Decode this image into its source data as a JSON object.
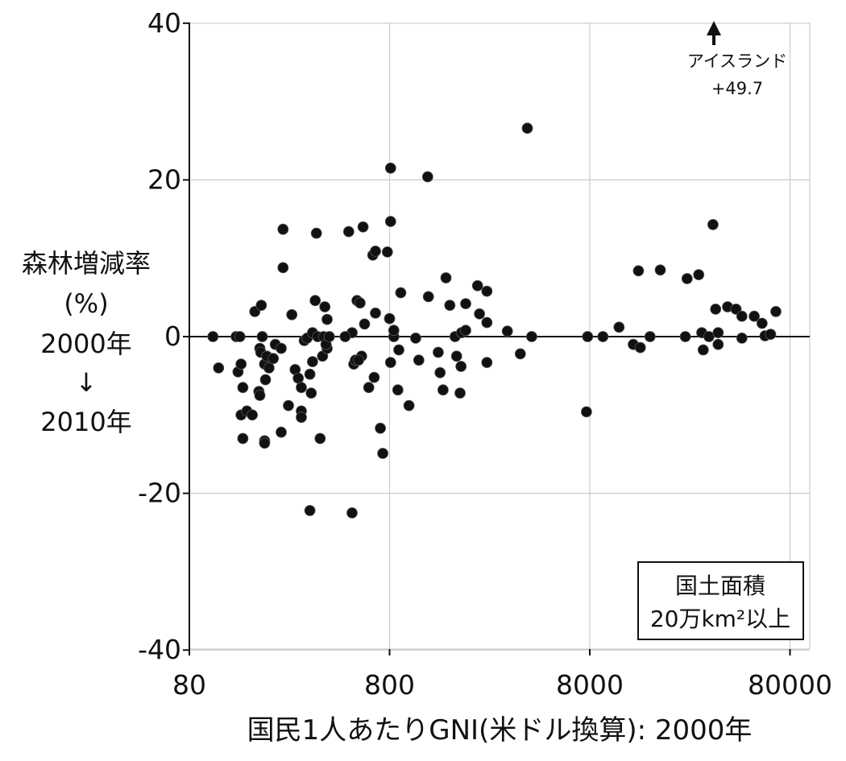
{
  "chart_data": {
    "type": "scatter",
    "x_scale": "log",
    "xlim": [
      80,
      100000
    ],
    "ylim": [
      -40,
      40
    ],
    "x_ticks": [
      "80",
      "800",
      "8000",
      "80000"
    ],
    "y_ticks": [
      "40",
      "20",
      "0",
      "-20",
      "-40"
    ],
    "grid": true,
    "xlabel": "国民1人あたりGNI(米ドル換算): 2000年",
    "ylabel_lines": [
      "森林増減率",
      "(%)",
      "2000年",
      "↓",
      "2010年"
    ],
    "legend_box": [
      "国土面積",
      "20万km²以上"
    ],
    "legend_placement": "bottom-right",
    "annotation": {
      "label": "アイスランド",
      "value": "+49.7",
      "x": 33000,
      "arrow": "up"
    },
    "points": [
      [
        105,
        0
      ],
      [
        112,
        -4
      ],
      [
        137,
        0
      ],
      [
        140,
        -4.5
      ],
      [
        143,
        0
      ],
      [
        145,
        -3.5
      ],
      [
        148,
        -6.5
      ],
      [
        145,
        -10
      ],
      [
        148,
        -13
      ],
      [
        155,
        -9.5
      ],
      [
        165,
        -10
      ],
      [
        170,
        3.2
      ],
      [
        178,
        -7
      ],
      [
        180,
        -1.5
      ],
      [
        182,
        -2
      ],
      [
        183,
        4
      ],
      [
        180,
        -7.5
      ],
      [
        185,
        0
      ],
      [
        190,
        -3.5
      ],
      [
        192,
        -5.5
      ],
      [
        190,
        -13.3
      ],
      [
        190,
        -13.6
      ],
      [
        195,
        -2.5
      ],
      [
        200,
        -4
      ],
      [
        210,
        -2.8
      ],
      [
        215,
        -1
      ],
      [
        230,
        -1.5
      ],
      [
        235,
        13.7
      ],
      [
        235,
        8.8
      ],
      [
        230,
        -12.2
      ],
      [
        250,
        -8.8
      ],
      [
        260,
        2.8
      ],
      [
        270,
        -4.2
      ],
      [
        280,
        -5.3
      ],
      [
        290,
        -6.5
      ],
      [
        290,
        -9.5
      ],
      [
        290,
        -10.3
      ],
      [
        300,
        -0.5
      ],
      [
        310,
        -0.2
      ],
      [
        320,
        -4.8
      ],
      [
        325,
        -7.2
      ],
      [
        330,
        -3.2
      ],
      [
        330,
        0.5
      ],
      [
        340,
        4.6
      ],
      [
        345,
        13.2
      ],
      [
        350,
        0
      ],
      [
        360,
        -13
      ],
      [
        370,
        -2.5
      ],
      [
        375,
        0
      ],
      [
        380,
        3.8
      ],
      [
        390,
        2.2
      ],
      [
        390,
        -1.5
      ],
      [
        385,
        -1
      ],
      [
        400,
        0
      ],
      [
        320,
        -22.2
      ],
      [
        520,
        -22.5
      ],
      [
        500,
        13.4
      ],
      [
        550,
        4.6
      ],
      [
        570,
        4.3
      ],
      [
        590,
        14
      ],
      [
        600,
        1.6
      ],
      [
        580,
        -2.5
      ],
      [
        530,
        -3.5
      ],
      [
        540,
        -3
      ],
      [
        520,
        0.5
      ],
      [
        480,
        0
      ],
      [
        560,
        -3
      ],
      [
        630,
        -6.5
      ],
      [
        660,
        10.4
      ],
      [
        680,
        10.9
      ],
      [
        670,
        -5.2
      ],
      [
        680,
        3
      ],
      [
        720,
        -11.7
      ],
      [
        740,
        -14.9
      ],
      [
        780,
        10.8
      ],
      [
        800,
        2.3
      ],
      [
        810,
        21.5
      ],
      [
        810,
        14.7
      ],
      [
        810,
        -3.3
      ],
      [
        840,
        0
      ],
      [
        840,
        0.8
      ],
      [
        880,
        -6.8
      ],
      [
        890,
        -1.7
      ],
      [
        910,
        5.6
      ],
      [
        1000,
        -8.8
      ],
      [
        1080,
        -0.2
      ],
      [
        1120,
        -3
      ],
      [
        1240,
        20.4
      ],
      [
        1250,
        5.1
      ],
      [
        1400,
        -2
      ],
      [
        1430,
        -4.6
      ],
      [
        1480,
        -6.8
      ],
      [
        1530,
        7.5
      ],
      [
        1600,
        4
      ],
      [
        1700,
        0
      ],
      [
        1730,
        -2.5
      ],
      [
        1800,
        -7.2
      ],
      [
        1820,
        -3.8
      ],
      [
        1830,
        0.5
      ],
      [
        1920,
        0.8
      ],
      [
        1920,
        4.2
      ],
      [
        2200,
        6.5
      ],
      [
        2250,
        2.9
      ],
      [
        2450,
        5.8
      ],
      [
        2450,
        1.8
      ],
      [
        2450,
        -3.3
      ],
      [
        3100,
        0.7
      ],
      [
        3600,
        -2.2
      ],
      [
        3900,
        26.6
      ],
      [
        4100,
        0
      ],
      [
        7700,
        -9.6
      ],
      [
        7800,
        0
      ],
      [
        9300,
        0
      ],
      [
        11200,
        1.2
      ],
      [
        13200,
        -1
      ],
      [
        14000,
        8.4
      ],
      [
        14300,
        -1.4
      ],
      [
        16000,
        0
      ],
      [
        18000,
        8.5
      ],
      [
        24000,
        0
      ],
      [
        24500,
        7.4
      ],
      [
        28000,
        7.9
      ],
      [
        29000,
        0.5
      ],
      [
        29500,
        -1.7
      ],
      [
        31500,
        0
      ],
      [
        33000,
        14.3
      ],
      [
        34000,
        3.5
      ],
      [
        35000,
        0.5
      ],
      [
        35000,
        -1
      ],
      [
        39000,
        3.8
      ],
      [
        43000,
        3.5
      ],
      [
        46000,
        -0.2
      ],
      [
        46000,
        2.6
      ],
      [
        53000,
        2.6
      ],
      [
        58000,
        1.7
      ],
      [
        60000,
        0.1
      ],
      [
        64000,
        0.3
      ],
      [
        68000,
        3.2
      ]
    ]
  }
}
